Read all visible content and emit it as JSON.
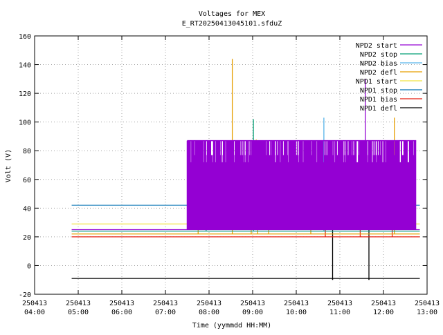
{
  "chart_data": {
    "type": "line",
    "title": "Voltages for MEX",
    "subtitle": "E_RT20250413045101.sfduZ",
    "xlabel": "Time (yymmdd HH:MM)",
    "ylabel": "Volt (V)",
    "xlim": [
      "2025-04-13 04:00",
      "2025-04-13 13:00"
    ],
    "ylim": [
      -20,
      160
    ],
    "grid": true,
    "legend_position": "top-right",
    "x_ticks": [
      {
        "date": "250413",
        "time": "04:00",
        "t": "04:00"
      },
      {
        "date": "250413",
        "time": "05:00",
        "t": "05:00"
      },
      {
        "date": "250413",
        "time": "06:00",
        "t": "06:00"
      },
      {
        "date": "250413",
        "time": "07:00",
        "t": "07:00"
      },
      {
        "date": "250413",
        "time": "08:00",
        "t": "08:00"
      },
      {
        "date": "250413",
        "time": "09:00",
        "t": "09:00"
      },
      {
        "date": "250413",
        "time": "10:00",
        "t": "10:00"
      },
      {
        "date": "250413",
        "time": "11:00",
        "t": "11:00"
      },
      {
        "date": "250413",
        "time": "12:00",
        "t": "12:00"
      },
      {
        "date": "250413",
        "time": "13:00",
        "t": "13:00"
      }
    ],
    "y_ticks": [
      "-20",
      "0",
      "20",
      "40",
      "60",
      "80",
      "100",
      "120",
      "140",
      "160"
    ],
    "data_range": {
      "start": "04:51",
      "end": "12:50",
      "dense_start": "07:30",
      "dense_end": "12:45"
    },
    "series": [
      {
        "name": "NPD2 start",
        "color": "#9400d3",
        "base": 25,
        "high": 87,
        "alt": 72,
        "spikes": [
          {
            "t": "11:35",
            "v": 130
          },
          {
            "t": "07:32",
            "v": 56
          }
        ]
      },
      {
        "name": "NPD2 stop",
        "color": "#009e73",
        "base": 24,
        "high": null,
        "spikes": [
          {
            "t": "09:01",
            "v": 102
          },
          {
            "t": "07:56",
            "v": 56
          }
        ]
      },
      {
        "name": "NPD2 bias",
        "color": "#56b4e9",
        "base": 24,
        "high": null,
        "spikes": [
          {
            "t": "10:38",
            "v": 103
          }
        ]
      },
      {
        "name": "NPD2 defl",
        "color": "#e69f00",
        "base": 22,
        "high": null,
        "spikes": [
          {
            "t": "08:32",
            "v": 144
          },
          {
            "t": "07:45",
            "v": 55
          },
          {
            "t": "08:58",
            "v": 44
          },
          {
            "t": "09:07",
            "v": 42
          },
          {
            "t": "09:22",
            "v": 40
          },
          {
            "t": "12:15",
            "v": 103
          },
          {
            "t": "10:20",
            "v": 43
          }
        ]
      },
      {
        "name": "NPD1 start",
        "color": "#f0e442",
        "base": 29,
        "high": null,
        "spikes": [
          {
            "t": "09:05",
            "v": 88
          },
          {
            "t": "08:15",
            "v": 40
          },
          {
            "t": "10:45",
            "v": 60
          }
        ]
      },
      {
        "name": "NPD1 stop",
        "color": "#0072b2",
        "base": 42,
        "high": null,
        "spikes": [
          {
            "t": "08:00",
            "v": 60
          },
          {
            "t": "11:55",
            "v": 72
          }
        ]
      },
      {
        "name": "NPD1 bias",
        "color": "#e51e10",
        "base": 20,
        "high": null,
        "spikes": [
          {
            "t": "12:12",
            "v": 83
          },
          {
            "t": "10:40",
            "v": 40
          },
          {
            "t": "11:28",
            "v": 45
          }
        ]
      },
      {
        "name": "NPD1 defl",
        "color": "#000000",
        "base": -9,
        "high": null,
        "spikes": [
          {
            "t": "10:50",
            "v": 72
          },
          {
            "t": "11:40",
            "v": 60
          }
        ]
      }
    ]
  }
}
